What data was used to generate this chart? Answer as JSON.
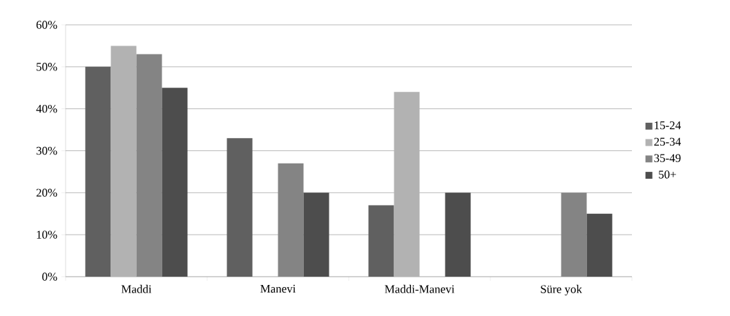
{
  "chart_data": {
    "type": "bar",
    "categories": [
      "Maddi",
      "Manevi",
      "Maddi-Manevi",
      "Süre yok"
    ],
    "series": [
      {
        "name": "15-24",
        "color": "#606060",
        "values": [
          50,
          33,
          17,
          0
        ]
      },
      {
        "name": "25-34",
        "color": "#b2b2b2",
        "values": [
          55,
          0,
          44,
          0
        ]
      },
      {
        "name": "35-49",
        "color": "#848484",
        "values": [
          53,
          27,
          0,
          20
        ]
      },
      {
        "name": "50+",
        "color": "#4d4d4d",
        "values": [
          45,
          20,
          20,
          15
        ]
      }
    ],
    "ylim": [
      0,
      60
    ],
    "yticks": [
      {
        "value": 0,
        "label": "0%"
      },
      {
        "value": 10,
        "label": "10%"
      },
      {
        "value": 20,
        "label": "20%"
      },
      {
        "value": 30,
        "label": "30%"
      },
      {
        "value": 40,
        "label": "40%"
      },
      {
        "value": 50,
        "label": "50%"
      },
      {
        "value": 60,
        "label": "60%"
      }
    ],
    "grid": "y",
    "legend": "right"
  }
}
